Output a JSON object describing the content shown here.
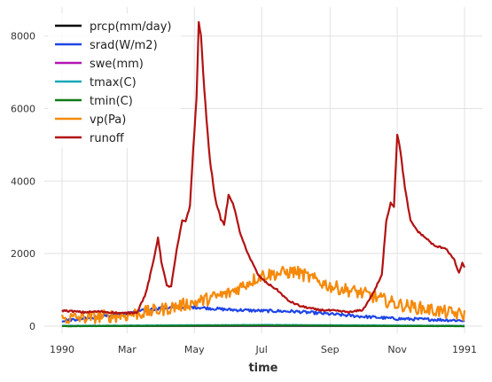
{
  "chart_data": {
    "type": "line",
    "xlabel": "time",
    "ylabel": "",
    "title": "",
    "x_start": "1990-01-01",
    "x_end": "1991-01-01",
    "x_ticks": [
      {
        "date": "1990-01-01",
        "label": "1990"
      },
      {
        "date": "1990-03-01",
        "label": "Mar"
      },
      {
        "date": "1990-05-01",
        "label": "May"
      },
      {
        "date": "1990-07-01",
        "label": "Jul"
      },
      {
        "date": "1990-09-01",
        "label": "Sep"
      },
      {
        "date": "1990-11-01",
        "label": "Nov"
      },
      {
        "date": "1991-01-01",
        "label": "1991"
      }
    ],
    "ylim": [
      -200,
      8800
    ],
    "y_ticks": [
      0,
      2000,
      4000,
      6000,
      8000
    ],
    "y_tick_labels": [
      "0",
      "2000",
      "4000",
      "6000",
      "8000"
    ],
    "grid": true,
    "legend_position": "top-left",
    "series": [
      {
        "name": "prcp(mm/day)",
        "color": "#000000",
        "noise": 2,
        "points": [
          [
            "1990-01-01",
            0
          ],
          [
            "1991-01-01",
            0
          ]
        ]
      },
      {
        "name": "srad(W/m2)",
        "color": "#1f45e6",
        "noise": 40,
        "points": [
          [
            "1990-01-01",
            150
          ],
          [
            "1990-02-01",
            250
          ],
          [
            "1990-03-01",
            350
          ],
          [
            "1990-04-01",
            500
          ],
          [
            "1990-05-01",
            520
          ],
          [
            "1990-06-01",
            450
          ],
          [
            "1990-07-01",
            420
          ],
          [
            "1990-08-01",
            400
          ],
          [
            "1990-09-01",
            330
          ],
          [
            "1990-10-01",
            260
          ],
          [
            "1990-11-01",
            200
          ],
          [
            "1990-12-01",
            180
          ],
          [
            "1991-01-01",
            150
          ]
        ]
      },
      {
        "name": "swe(mm)",
        "color": "#b515b5",
        "noise": 3,
        "points": [
          [
            "1990-01-01",
            5
          ],
          [
            "1991-01-01",
            5
          ]
        ]
      },
      {
        "name": "tmax(C)",
        "color": "#17a8b8",
        "noise": 4,
        "points": [
          [
            "1990-01-01",
            5
          ],
          [
            "1990-07-01",
            30
          ],
          [
            "1991-01-01",
            5
          ]
        ]
      },
      {
        "name": "tmin(C)",
        "color": "#117a17",
        "noise": 3,
        "points": [
          [
            "1990-01-01",
            -5
          ],
          [
            "1990-07-01",
            15
          ],
          [
            "1991-01-01",
            -5
          ]
        ]
      },
      {
        "name": "vp(Pa)",
        "color": "#f58a0a",
        "noise": 180,
        "points": [
          [
            "1990-01-01",
            200
          ],
          [
            "1990-03-01",
            300
          ],
          [
            "1990-04-01",
            450
          ],
          [
            "1990-05-01",
            650
          ],
          [
            "1990-06-01",
            900
          ],
          [
            "1990-07-01",
            1400
          ],
          [
            "1990-08-01",
            1500
          ],
          [
            "1990-09-01",
            1100
          ],
          [
            "1990-10-01",
            900
          ],
          [
            "1990-11-01",
            600
          ],
          [
            "1990-12-01",
            450
          ],
          [
            "1991-01-01",
            300
          ]
        ]
      },
      {
        "name": "runoff",
        "color": "#b31212",
        "noise": 25,
        "points": [
          [
            "1990-01-01",
            430
          ],
          [
            "1990-01-20",
            380
          ],
          [
            "1990-02-05",
            400
          ],
          [
            "1990-02-25",
            350
          ],
          [
            "1990-03-10",
            380
          ],
          [
            "1990-03-18",
            900
          ],
          [
            "1990-03-25",
            1800
          ],
          [
            "1990-03-29",
            2450
          ],
          [
            "1990-04-01",
            1800
          ],
          [
            "1990-04-06",
            1100
          ],
          [
            "1990-04-10",
            1100
          ],
          [
            "1990-04-15",
            2100
          ],
          [
            "1990-04-20",
            2900
          ],
          [
            "1990-04-23",
            2900
          ],
          [
            "1990-04-27",
            3300
          ],
          [
            "1990-04-30",
            4900
          ],
          [
            "1990-05-03",
            6300
          ],
          [
            "1990-05-05",
            8400
          ],
          [
            "1990-05-07",
            8000
          ],
          [
            "1990-05-10",
            6500
          ],
          [
            "1990-05-15",
            4600
          ],
          [
            "1990-05-20",
            3500
          ],
          [
            "1990-05-25",
            2950
          ],
          [
            "1990-05-28",
            2800
          ],
          [
            "1990-06-01",
            3600
          ],
          [
            "1990-06-05",
            3400
          ],
          [
            "1990-06-12",
            2500
          ],
          [
            "1990-06-20",
            1900
          ],
          [
            "1990-06-28",
            1400
          ],
          [
            "1990-07-05",
            1200
          ],
          [
            "1990-07-15",
            1000
          ],
          [
            "1990-07-25",
            700
          ],
          [
            "1990-08-05",
            550
          ],
          [
            "1990-08-20",
            450
          ],
          [
            "1990-09-05",
            420
          ],
          [
            "1990-09-20",
            380
          ],
          [
            "1990-10-01",
            450
          ],
          [
            "1990-10-10",
            900
          ],
          [
            "1990-10-18",
            1400
          ],
          [
            "1990-10-22",
            2900
          ],
          [
            "1990-10-26",
            3400
          ],
          [
            "1990-10-29",
            3300
          ],
          [
            "1990-11-01",
            5300
          ],
          [
            "1990-11-04",
            4800
          ],
          [
            "1990-11-08",
            3800
          ],
          [
            "1990-11-13",
            2900
          ],
          [
            "1990-11-20",
            2600
          ],
          [
            "1990-11-28",
            2400
          ],
          [
            "1990-12-05",
            2200
          ],
          [
            "1990-12-15",
            2150
          ],
          [
            "1990-12-23",
            1800
          ],
          [
            "1990-12-27",
            1450
          ],
          [
            "1990-12-30",
            1750
          ],
          [
            "1991-01-01",
            1600
          ]
        ]
      }
    ]
  }
}
